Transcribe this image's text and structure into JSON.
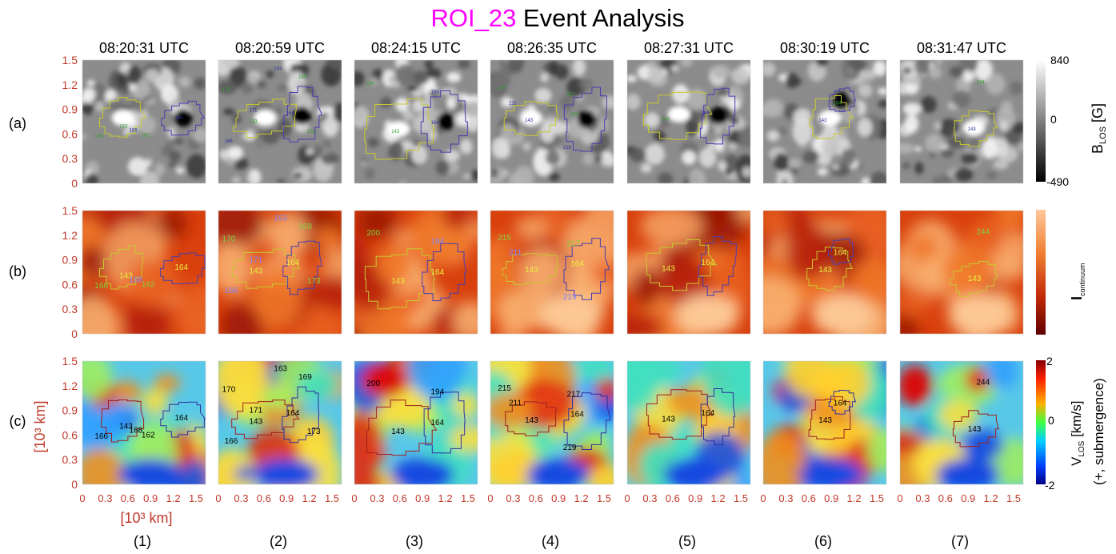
{
  "title": {
    "roi": "ROI_23",
    "rest": " Event Analysis",
    "roi_color": "#ff00ff"
  },
  "times": [
    "08:20:31 UTC",
    "08:20:59 UTC",
    "08:24:15 UTC",
    "08:26:35 UTC",
    "08:27:31 UTC",
    "08:30:19 UTC",
    "08:31:47 UTC"
  ],
  "row_labels": [
    "(a)",
    "(b)",
    "(c)"
  ],
  "col_labels": [
    "(1)",
    "(2)",
    "(3)",
    "(4)",
    "(5)",
    "(6)",
    "(7)"
  ],
  "y_ticks": [
    "1.5",
    "1.2",
    "0.9",
    "0.6",
    "0.3",
    "0"
  ],
  "x_ticks": [
    "0",
    "0.3",
    "0.6",
    "0.9",
    "1.2",
    "1.5"
  ],
  "axis_unit_y": "[10³ km]",
  "axis_unit_x": "[10³ km]",
  "tick_color": "#c0392b",
  "colorbars": {
    "blos": {
      "max": "840",
      "mid": "0",
      "min": "-490",
      "label": "B",
      "label_sub": "LOS",
      "label_unit": " [G]"
    },
    "icont": {
      "label": "I",
      "label_sub": "continuum"
    },
    "vlos": {
      "max": "2",
      "mid": "0",
      "min": "-2",
      "label": "V",
      "label_sub": "LOS",
      "label_unit": " [km/s]",
      "label2": "(+, submergence)"
    }
  },
  "contour_labels": [
    [
      "143",
      "164",
      "166",
      "168",
      "162"
    ],
    [
      "170",
      "163",
      "169",
      "171",
      "143",
      "164",
      "173",
      "166"
    ],
    [
      "200",
      "194",
      "143",
      "164"
    ],
    [
      "215",
      "211",
      "217",
      "143",
      "164",
      "219"
    ],
    [
      "143",
      "164"
    ],
    [
      "164",
      "143"
    ],
    [
      "244",
      "143"
    ]
  ],
  "contour_colors": {
    "c143": "#c8c830",
    "c164": "#4a3db0",
    "small": "#30a030",
    "c164_v": "#3030a0",
    "c143_v": "#a02020"
  }
}
